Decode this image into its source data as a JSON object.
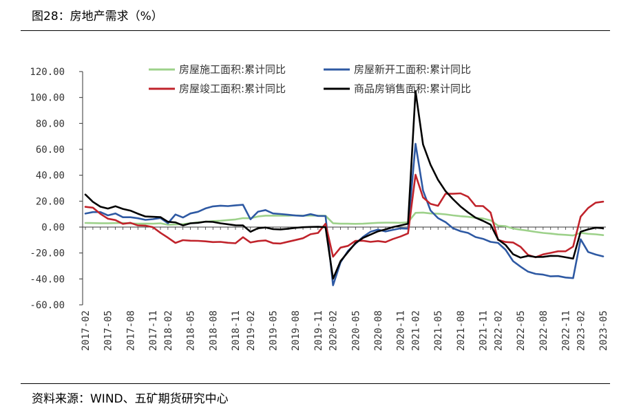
{
  "header": {
    "title": "图28：房地产需求（%）"
  },
  "footer": {
    "source": "资料来源：WIND、五矿期货研究中心"
  },
  "chart_data": {
    "type": "line",
    "title": "",
    "ylim": [
      -60,
      120
    ],
    "yticks": [
      "120.00",
      "100.00",
      "80.00",
      "60.00",
      "40.00",
      "20.00",
      "0.00",
      "-20.00",
      "-40.00",
      "-60.00"
    ],
    "ytick_values": [
      120,
      100,
      80,
      60,
      40,
      20,
      0,
      -20,
      -40,
      -60
    ],
    "x": [
      "2017-02",
      "2017-03",
      "2017-04",
      "2017-05",
      "2017-06",
      "2017-07",
      "2017-08",
      "2017-09",
      "2017-10",
      "2017-11",
      "2017-12",
      "2018-02",
      "2018-03",
      "2018-04",
      "2018-05",
      "2018-06",
      "2018-07",
      "2018-08",
      "2018-09",
      "2018-10",
      "2018-11",
      "2018-12",
      "2019-02",
      "2019-03",
      "2019-04",
      "2019-05",
      "2019-06",
      "2019-07",
      "2019-08",
      "2019-09",
      "2019-10",
      "2019-11",
      "2019-12",
      "2020-02",
      "2020-03",
      "2020-04",
      "2020-05",
      "2020-06",
      "2020-07",
      "2020-08",
      "2020-09",
      "2020-10",
      "2020-11",
      "2020-12",
      "2021-02",
      "2021-03",
      "2021-04",
      "2021-05",
      "2021-06",
      "2021-07",
      "2021-08",
      "2021-09",
      "2021-10",
      "2021-11",
      "2021-12",
      "2022-02",
      "2022-03",
      "2022-04",
      "2022-05",
      "2022-06",
      "2022-07",
      "2022-08",
      "2022-09",
      "2022-10",
      "2022-11",
      "2022-12",
      "2023-02",
      "2023-03",
      "2023-04",
      "2023-05"
    ],
    "xticks": [
      "2017-02",
      "2017-05",
      "2017-08",
      "2017-11",
      "2018-02",
      "2018-05",
      "2018-08",
      "2018-11",
      "2019-02",
      "2019-05",
      "2019-08",
      "2019-11",
      "2020-02",
      "2020-05",
      "2020-08",
      "2020-11",
      "2021-02",
      "2021-05",
      "2021-08",
      "2021-11",
      "2022-02",
      "2022-05",
      "2022-08",
      "2022-11",
      "2023-02",
      "2023-05"
    ],
    "series": [
      {
        "name": "房屋施工面积:累计同比",
        "color": "#9dd18a",
        "values": [
          3.2,
          3.1,
          3.0,
          3.0,
          3.1,
          3.2,
          2.8,
          2.6,
          2.7,
          2.6,
          2.9,
          1.8,
          2.0,
          2.3,
          3.0,
          3.6,
          4.1,
          4.6,
          4.9,
          5.4,
          5.9,
          6.9,
          6.8,
          8.2,
          8.8,
          8.8,
          8.8,
          8.8,
          9.0,
          8.8,
          8.9,
          8.8,
          8.7,
          3.0,
          2.6,
          2.6,
          2.5,
          2.6,
          3.0,
          3.3,
          3.4,
          3.4,
          3.3,
          3.7,
          11.0,
          11.2,
          10.5,
          10.3,
          9.8,
          9.0,
          8.4,
          7.9,
          7.1,
          6.6,
          5.2,
          1.1,
          0.7,
          -1.1,
          -2.0,
          -2.8,
          -3.7,
          -4.5,
          -5.0,
          -5.7,
          -6.0,
          -6.5,
          -4.4,
          -5.2,
          -5.6,
          -6.2
        ]
      },
      {
        "name": "房屋新开工面积:累计同比",
        "color": "#2e59a3",
        "values": [
          10.4,
          11.6,
          11.6,
          9.0,
          10.5,
          7.6,
          7.6,
          6.8,
          5.6,
          6.1,
          7.0,
          2.9,
          9.7,
          7.4,
          10.5,
          11.8,
          14.4,
          16.0,
          16.5,
          16.2,
          16.8,
          17.2,
          6.0,
          11.9,
          13.1,
          10.5,
          10.1,
          9.5,
          8.9,
          8.6,
          10.0,
          8.6,
          8.5,
          -44.9,
          -27.2,
          -18.4,
          -12.8,
          -7.6,
          -3.6,
          -1.9,
          -3.4,
          -2.1,
          -1.0,
          -1.2,
          64.3,
          28.2,
          12.8,
          6.9,
          3.8,
          -0.9,
          -3.2,
          -4.5,
          -7.7,
          -9.1,
          -11.4,
          -12.2,
          -17.5,
          -26.3,
          -30.6,
          -34.4,
          -36.1,
          -36.7,
          -38.0,
          -37.8,
          -38.9,
          -39.4,
          -9.4,
          -19.2,
          -21.2,
          -22.6
        ]
      },
      {
        "name": "房屋竣工面积:累计同比",
        "color": "#c0232b",
        "values": [
          15.6,
          15.0,
          10.2,
          6.5,
          5.4,
          2.5,
          3.3,
          1.3,
          1.1,
          -0.1,
          -4.4,
          -8.2,
          -12.2,
          -10.1,
          -10.5,
          -10.6,
          -11.0,
          -11.6,
          -11.4,
          -12.1,
          -12.5,
          -7.8,
          -11.9,
          -10.8,
          -10.3,
          -12.4,
          -12.7,
          -11.3,
          -10.0,
          -8.6,
          -5.5,
          -4.5,
          2.6,
          -22.9,
          -15.8,
          -14.5,
          -10.6,
          -10.5,
          -11.4,
          -10.8,
          -11.6,
          -9.2,
          -7.3,
          -4.9,
          40.4,
          22.9,
          17.9,
          16.4,
          25.7,
          25.7,
          26.0,
          23.4,
          16.3,
          16.2,
          11.2,
          -9.9,
          -11.5,
          -11.9,
          -15.3,
          -21.5,
          -23.3,
          -21.1,
          -19.9,
          -18.7,
          -18.7,
          -15.0,
          8.0,
          14.7,
          18.8,
          19.6
        ]
      },
      {
        "name": "商品房销售面积:累计同比",
        "color": "#000000",
        "values": [
          25.1,
          19.5,
          15.7,
          14.3,
          16.1,
          14.0,
          12.7,
          10.3,
          8.2,
          7.9,
          7.7,
          4.1,
          3.6,
          1.3,
          2.9,
          3.3,
          4.2,
          4.0,
          2.9,
          2.2,
          1.4,
          1.3,
          -3.6,
          -0.9,
          -0.3,
          -1.6,
          -1.8,
          -1.3,
          -0.6,
          -0.1,
          0.1,
          0.2,
          -0.1,
          -39.9,
          -26.3,
          -19.3,
          -12.3,
          -8.4,
          -5.8,
          -3.3,
          -1.8,
          0.0,
          1.3,
          2.6,
          104.9,
          63.8,
          48.1,
          36.4,
          27.7,
          21.5,
          15.9,
          11.3,
          7.3,
          4.8,
          1.9,
          -9.6,
          -13.8,
          -20.9,
          -23.6,
          -22.2,
          -23.1,
          -23.0,
          -22.2,
          -22.3,
          -23.3,
          -24.3,
          -3.6,
          -1.8,
          -0.4,
          -0.9
        ]
      }
    ]
  }
}
